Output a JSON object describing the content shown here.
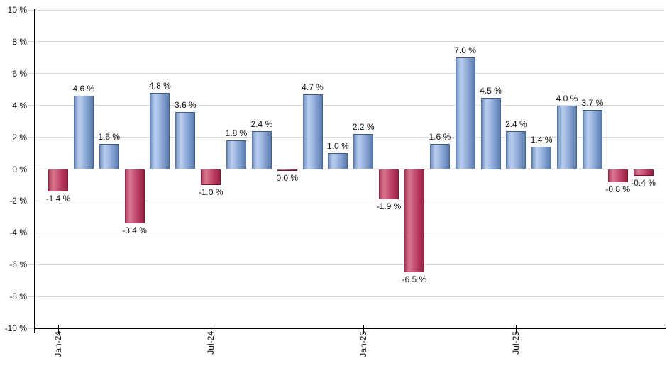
{
  "chart_data": {
    "type": "bar",
    "title": "",
    "xlabel": "",
    "ylabel": "",
    "unit": "%",
    "ylim": [
      -10,
      10
    ],
    "grid": true,
    "legend": "none",
    "y_ticks": [
      {
        "value": 10,
        "label": "10 %"
      },
      {
        "value": 8,
        "label": "8 %"
      },
      {
        "value": 6,
        "label": "6 %"
      },
      {
        "value": 4,
        "label": "4 %"
      },
      {
        "value": 2,
        "label": "2 %"
      },
      {
        "value": 0,
        "label": "0 %"
      },
      {
        "value": -2,
        "label": "-2 %"
      },
      {
        "value": -4,
        "label": "-4 %"
      },
      {
        "value": -6,
        "label": "-6 %"
      },
      {
        "value": -8,
        "label": "-8 %"
      },
      {
        "value": -10,
        "label": "-10 %"
      }
    ],
    "x_ticks": [
      {
        "index": 0,
        "label": "Jan-24"
      },
      {
        "index": 6,
        "label": "Jul-24"
      },
      {
        "index": 12,
        "label": "Jan-25"
      },
      {
        "index": 18,
        "label": "Jul-25"
      }
    ],
    "bars": [
      {
        "value": -1.4,
        "label": "-1.4 %"
      },
      {
        "value": 4.6,
        "label": "4.6 %"
      },
      {
        "value": 1.6,
        "label": "1.6 %"
      },
      {
        "value": -3.4,
        "label": "-3.4 %"
      },
      {
        "value": 4.8,
        "label": "4.8 %"
      },
      {
        "value": 3.6,
        "label": "3.6 %"
      },
      {
        "value": -1.0,
        "label": "-1.0 %"
      },
      {
        "value": 1.8,
        "label": "1.8 %"
      },
      {
        "value": 2.4,
        "label": "2.4 %"
      },
      {
        "value": 0.0,
        "label": "0.0 %",
        "negative": true
      },
      {
        "value": 4.7,
        "label": "4.7 %"
      },
      {
        "value": 1.0,
        "label": "1.0 %"
      },
      {
        "value": 2.2,
        "label": "2.2 %"
      },
      {
        "value": -1.9,
        "label": "-1.9 %"
      },
      {
        "value": -6.5,
        "label": "-6.5 %"
      },
      {
        "value": 1.6,
        "label": "1.6 %"
      },
      {
        "value": 7.0,
        "label": "7.0 %"
      },
      {
        "value": 4.5,
        "label": "4.5 %"
      },
      {
        "value": 2.4,
        "label": "2.4 %"
      },
      {
        "value": 1.4,
        "label": "1.4 %"
      },
      {
        "value": 4.0,
        "label": "4.0 %"
      },
      {
        "value": 3.7,
        "label": "3.7 %"
      },
      {
        "value": -0.8,
        "label": "-0.8 %"
      },
      {
        "value": -0.4,
        "label": "-0.4 %"
      }
    ],
    "colors": {
      "positive_bar_dark": "#4d6b9b",
      "positive_bar_highlight": "#b9cdee",
      "positive_bar_edge": "#3e5a85",
      "negative_bar_dark": "#8c1c3d",
      "negative_bar_highlight": "#d9768f",
      "negative_bar_edge": "#6e1430",
      "gridline": "#d9d9d9",
      "axis": "#000000",
      "label_text": "#111111",
      "background": "#ffffff"
    }
  }
}
